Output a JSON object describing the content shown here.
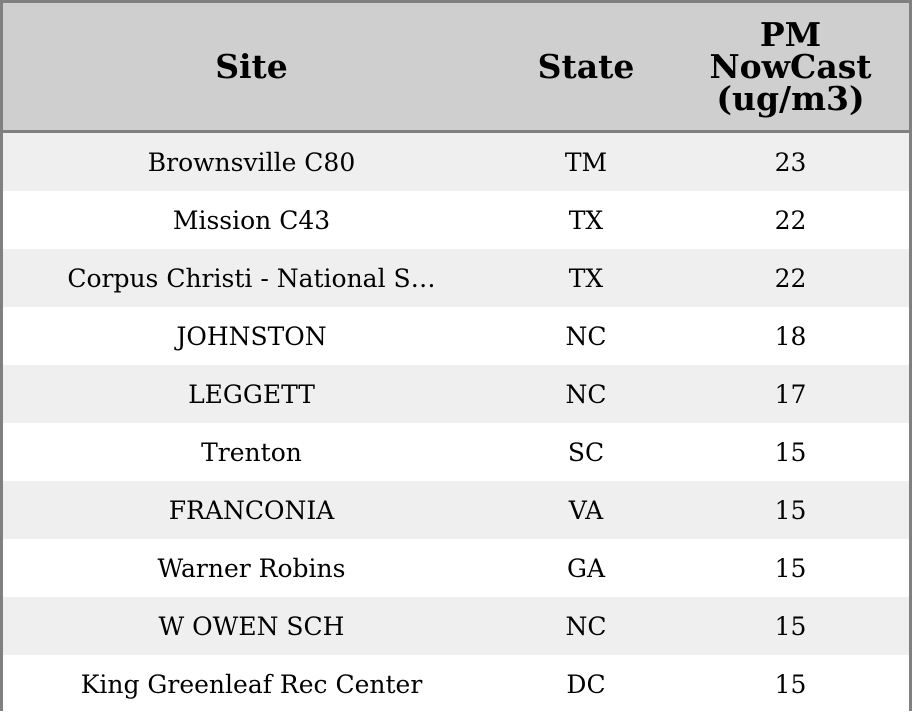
{
  "chart_data": {
    "type": "table",
    "columns": [
      "Site",
      "State",
      "PM\nNowCast\n(ug/m3)"
    ],
    "rows": [
      [
        "Brownsville C80",
        "TM",
        "23"
      ],
      [
        "Mission C43",
        "TX",
        "22"
      ],
      [
        "Corpus Christi - National S…",
        "TX",
        "22"
      ],
      [
        "JOHNSTON",
        "NC",
        "18"
      ],
      [
        "LEGGETT",
        "NC",
        "17"
      ],
      [
        "Trenton",
        "SC",
        "15"
      ],
      [
        "FRANCONIA",
        "VA",
        "15"
      ],
      [
        "Warner Robins",
        "GA",
        "15"
      ],
      [
        "W OWEN SCH",
        "NC",
        "15"
      ],
      [
        "King Greenleaf Rec Center",
        "DC",
        "15"
      ]
    ]
  },
  "colors": {
    "header_background": "#cfcfcf",
    "striped_row": "#efefef",
    "border": "#808080"
  }
}
